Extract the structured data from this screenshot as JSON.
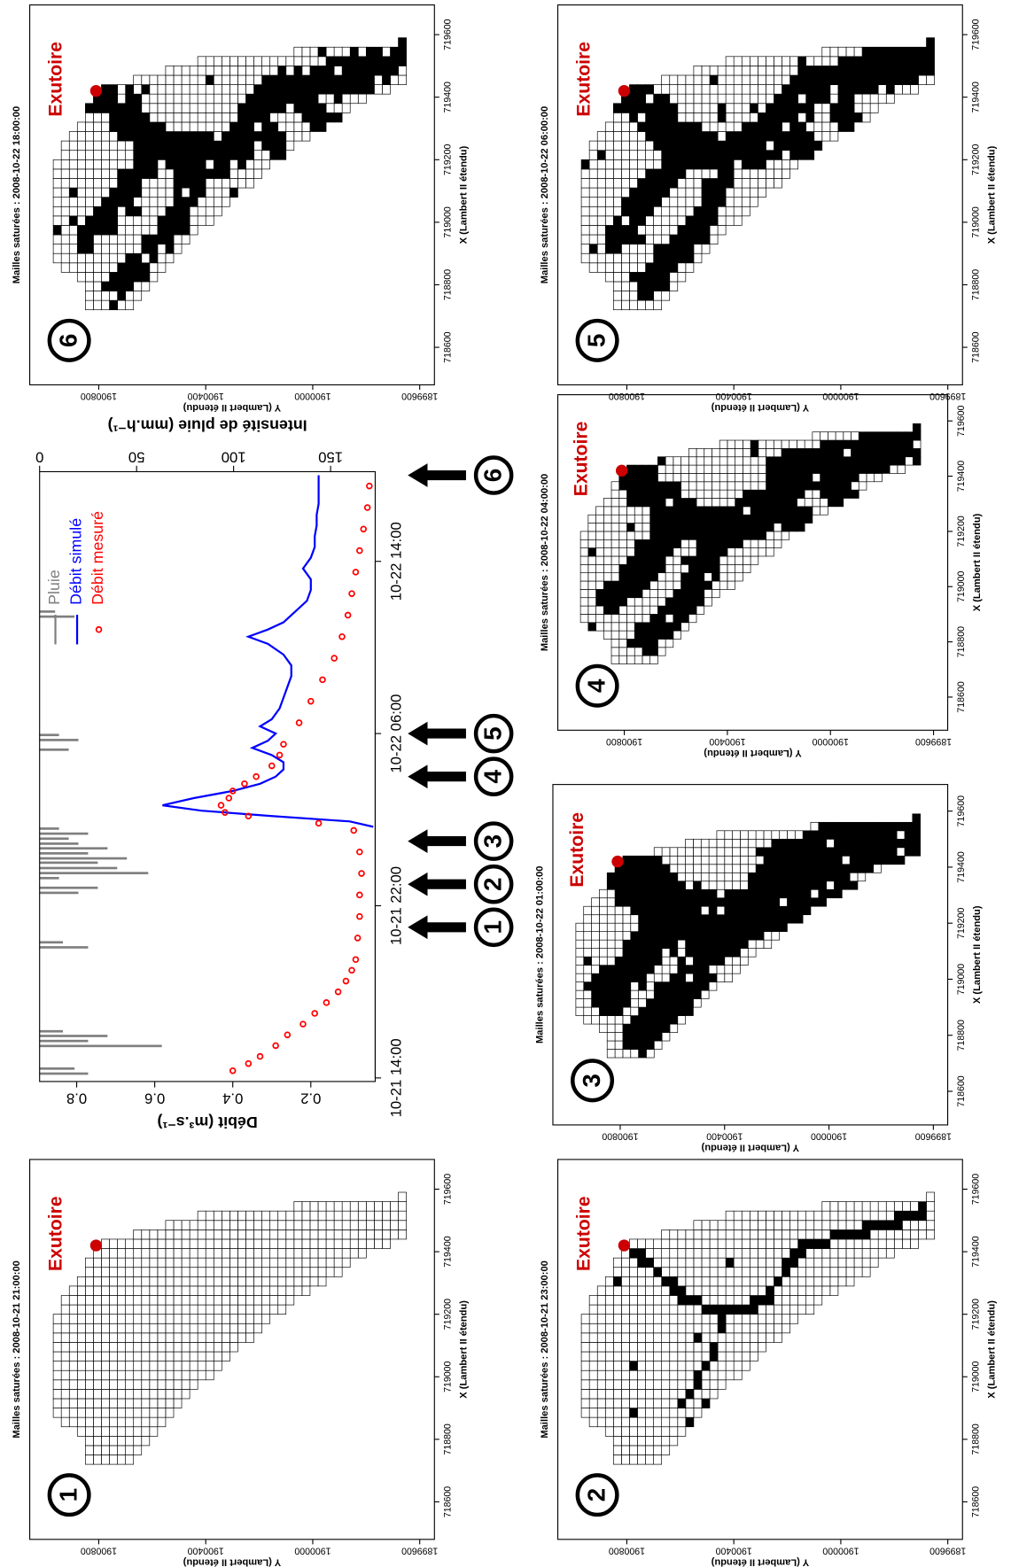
{
  "chart_data": [
    {
      "type": "line",
      "y_label": "Débit (m³.s⁻¹)",
      "y2_label": "Intensité de pluie (mm.h⁻¹)",
      "xlim": [
        "10-21 13:50",
        "10-22 18:10"
      ],
      "xticks": [
        "10-21 14:00",
        "10-21 22:00",
        "10-22 06:00",
        "10-22 14:00"
      ],
      "ylim": [
        0.035,
        0.895
      ],
      "yticks": [
        0.2,
        0.4,
        0.6,
        0.8
      ],
      "y2lim": [
        173,
        0
      ],
      "y2ticks": [
        0,
        50,
        100,
        150
      ],
      "legend": "topright",
      "grid": false,
      "series": [
        {
          "name": "Pluie",
          "mark": "bar",
          "axis": "y2",
          "color": "#7f7f7f",
          "x": [
            "10-21 14:12",
            "10-21 14:26",
            "10-21 15:29",
            "10-21 15:43",
            "10-21 15:57",
            "10-21 16:10",
            "10-21 20:04",
            "10-21 20:18",
            "10-21 22:36",
            "10-21 22:50",
            "10-21 23:17",
            "10-21 23:31",
            "10-21 23:45",
            "10-22 00:00",
            "10-22 00:12",
            "10-22 00:26",
            "10-22 00:40",
            "10-22 00:53",
            "10-22 01:07",
            "10-22 01:21",
            "10-22 01:35",
            "10-22 05:15",
            "10-22 05:42",
            "10-22 05:56",
            "10-22 11:26",
            "10-22 11:40"
          ],
          "values": [
            25,
            18,
            63,
            25,
            35,
            12,
            25,
            12,
            20,
            30,
            10,
            56,
            40,
            30,
            45,
            25,
            35,
            20,
            15,
            25,
            10,
            15,
            20,
            10,
            18,
            8
          ]
        },
        {
          "name": "Débit simulé",
          "mark": "line",
          "color": "#0000ff",
          "x": [
            "10-22 01:40",
            "10-22 01:55",
            "10-22 02:10",
            "10-22 02:25",
            "10-22 02:40",
            "10-22 03:00",
            "10-22 03:20",
            "10-22 03:40",
            "10-22 04:00",
            "10-22 04:20",
            "10-22 04:40",
            "10-22 05:00",
            "10-22 05:20",
            "10-22 05:40",
            "10-22 06:00",
            "10-22 06:20",
            "10-22 06:40",
            "10-22 07:10",
            "10-22 07:40",
            "10-22 08:10",
            "10-22 08:40",
            "10-22 09:10",
            "10-22 09:40",
            "10-22 10:10",
            "10-22 10:30",
            "10-22 10:50",
            "10-22 11:10",
            "10-22 11:40",
            "10-22 12:10",
            "10-22 12:40",
            "10-22 13:10",
            "10-22 13:40",
            "10-22 14:10",
            "10-22 14:40",
            "10-22 15:10",
            "10-22 15:40",
            "10-22 16:10",
            "10-22 16:40",
            "10-22 17:10",
            "10-22 17:40",
            "10-22 18:00"
          ],
          "values": [
            0.04,
            0.1,
            0.3,
            0.48,
            0.58,
            0.5,
            0.4,
            0.33,
            0.29,
            0.27,
            0.27,
            0.3,
            0.35,
            0.31,
            0.29,
            0.33,
            0.3,
            0.28,
            0.27,
            0.26,
            0.25,
            0.25,
            0.27,
            0.31,
            0.36,
            0.31,
            0.27,
            0.24,
            0.21,
            0.2,
            0.2,
            0.22,
            0.2,
            0.19,
            0.19,
            0.185,
            0.185,
            0.18,
            0.18,
            0.18,
            0.18
          ]
        },
        {
          "name": "Débit mesuré",
          "mark": "point",
          "color": "#ff0000",
          "x": [
            "10-21 14:20",
            "10-21 14:40",
            "10-21 15:00",
            "10-21 15:30",
            "10-21 16:00",
            "10-21 16:30",
            "10-21 17:00",
            "10-21 17:30",
            "10-21 18:00",
            "10-21 18:30",
            "10-21 19:00",
            "10-21 19:30",
            "10-21 20:30",
            "10-21 21:30",
            "10-21 22:30",
            "10-21 23:30",
            "10-22 00:30",
            "10-22 01:30",
            "10-22 01:50",
            "10-22 02:10",
            "10-22 02:20",
            "10-22 02:40",
            "10-22 03:00",
            "10-22 03:20",
            "10-22 03:40",
            "10-22 04:00",
            "10-22 04:30",
            "10-22 05:00",
            "10-22 05:30",
            "10-22 06:30",
            "10-22 07:30",
            "10-22 08:30",
            "10-22 09:30",
            "10-22 10:30",
            "10-22 11:30",
            "10-22 12:30",
            "10-22 13:30",
            "10-22 14:30",
            "10-22 15:30",
            "10-22 16:30",
            "10-22 17:30"
          ],
          "values": [
            0.4,
            0.36,
            0.33,
            0.29,
            0.26,
            0.22,
            0.19,
            0.16,
            0.13,
            0.11,
            0.095,
            0.085,
            0.08,
            0.075,
            0.075,
            0.07,
            0.075,
            0.09,
            0.18,
            0.36,
            0.42,
            0.43,
            0.41,
            0.4,
            0.37,
            0.34,
            0.3,
            0.28,
            0.27,
            0.23,
            0.2,
            0.17,
            0.14,
            0.12,
            0.105,
            0.095,
            0.085,
            0.075,
            0.065,
            0.055,
            0.05
          ]
        }
      ],
      "annotations": [
        {
          "x": "10-21 21:00",
          "label": "1"
        },
        {
          "x": "10-21 23:00",
          "label": "2"
        },
        {
          "x": "10-22 01:00",
          "label": "3"
        },
        {
          "x": "10-22 04:00",
          "label": "4"
        },
        {
          "x": "10-22 06:00",
          "label": "5"
        },
        {
          "x": "10-22 18:00",
          "label": "6"
        }
      ]
    },
    {
      "type": "map",
      "panel_label": "1",
      "title": "Mailles saturées : 2008-10-21 21:00:00",
      "x_label": "X (Lambert II étendu)",
      "y_label": "Y (Lambert II étendu)",
      "xlim": [
        718480,
        719695
      ],
      "ylim": [
        1899545,
        1901058
      ],
      "xticks": [
        718600,
        718800,
        719000,
        719200,
        719400,
        719600
      ],
      "yticks": [
        1899600,
        1900000,
        1900400,
        1900800
      ],
      "outlet": {
        "label": "Exutoire",
        "x": 719420,
        "y": 1900810,
        "color": "#cc0000"
      }
    },
    {
      "type": "map",
      "panel_label": "2",
      "title": "Mailles saturées : 2008-10-21 23:00:00",
      "x_label": "X (Lambert II étendu)",
      "y_label": "Y (Lambert II étendu)",
      "xlim": [
        718480,
        719695
      ],
      "ylim": [
        1899545,
        1901058
      ],
      "xticks": [
        718600,
        718800,
        719000,
        719200,
        719400,
        719600
      ],
      "yticks": [
        1899600,
        1900000,
        1900400,
        1900800
      ],
      "outlet": {
        "label": "Exutoire",
        "x": 719420,
        "y": 1900810,
        "color": "#cc0000"
      }
    },
    {
      "type": "map",
      "panel_label": "3",
      "title": "Mailles saturées : 2008-10-22 01:00:00",
      "x_label": "X (Lambert II étendu)",
      "y_label": "Y (Lambert II étendu)",
      "xlim": [
        718480,
        719695
      ],
      "ylim": [
        1899545,
        1901058
      ],
      "xticks": [
        718600,
        718800,
        719000,
        719200,
        719400,
        719600
      ],
      "yticks": [
        1899600,
        1900000,
        1900400,
        1900800
      ],
      "outlet": {
        "label": "Exutoire",
        "x": 719420,
        "y": 1900810,
        "color": "#cc0000"
      }
    },
    {
      "type": "map",
      "panel_label": "4",
      "title": "Mailles saturées : 2008-10-22 04:00:00",
      "x_label": "X (Lambert II étendu)",
      "y_label": "Y (Lambert II étendu)",
      "xlim": [
        718480,
        719695
      ],
      "ylim": [
        1899545,
        1901058
      ],
      "xticks": [
        718600,
        718800,
        719000,
        719200,
        719400,
        719600
      ],
      "yticks": [
        1899600,
        1900000,
        1900400,
        1900800
      ],
      "outlet": {
        "label": "Exutoire",
        "x": 719420,
        "y": 1900810,
        "color": "#cc0000"
      }
    },
    {
      "type": "map",
      "panel_label": "5",
      "title": "Mailles saturées : 2008-10-22 06:00:00",
      "x_label": "X (Lambert II étendu)",
      "y_label": "Y (Lambert II étendu)",
      "xlim": [
        718480,
        719695
      ],
      "ylim": [
        1899545,
        1901058
      ],
      "xticks": [
        718600,
        718800,
        719000,
        719200,
        719400,
        719600
      ],
      "yticks": [
        1899600,
        1900000,
        1900400,
        1900800
      ],
      "outlet": {
        "label": "Exutoire",
        "x": 719420,
        "y": 1900810,
        "color": "#cc0000"
      }
    },
    {
      "type": "map",
      "panel_label": "6",
      "title": "Mailles saturées : 2008-10-22 18:00:00",
      "x_label": "X (Lambert II étendu)",
      "y_label": "Y (Lambert II étendu)",
      "xlim": [
        718480,
        719695
      ],
      "ylim": [
        1899545,
        1901058
      ],
      "xticks": [
        718600,
        718800,
        719000,
        719200,
        719400,
        719600
      ],
      "yticks": [
        1899600,
        1900000,
        1900400,
        1900800
      ],
      "outlet": {
        "label": "Exutoire",
        "x": 719420,
        "y": 1900810,
        "color": "#cc0000"
      }
    }
  ]
}
